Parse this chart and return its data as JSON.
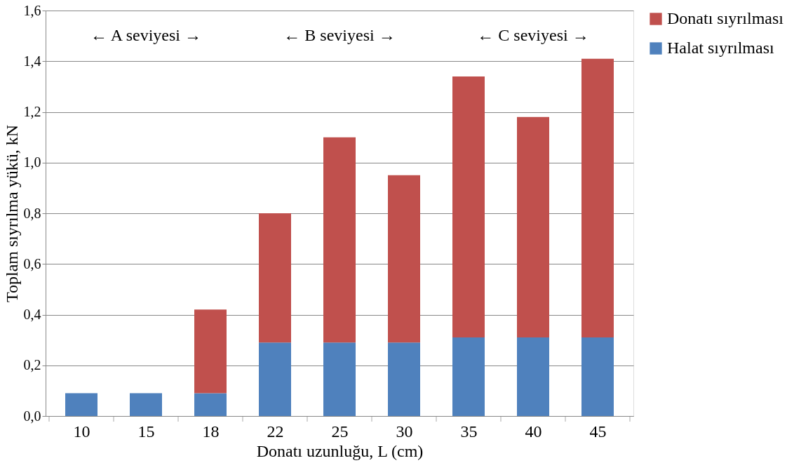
{
  "chart_data": {
    "type": "bar",
    "stacked": true,
    "xlabel": "Donatı uzunluğu, L (cm)",
    "ylabel": "Toplam sıyrılma yükü, kN",
    "categories": [
      "10",
      "15",
      "18",
      "22",
      "25",
      "30",
      "35",
      "40",
      "45"
    ],
    "series": [
      {
        "name": "Halat sıyrılması",
        "color": "#4f81bd",
        "values": [
          0.09,
          0.09,
          0.09,
          0.29,
          0.29,
          0.29,
          0.31,
          0.31,
          0.31
        ]
      },
      {
        "name": "Donatı sıyrılması",
        "color": "#c0504d",
        "values": [
          null,
          null,
          0.33,
          0.51,
          0.81,
          0.66,
          1.03,
          0.87,
          1.1
        ]
      }
    ],
    "ylim": [
      0,
      1.6
    ],
    "yticks": [
      {
        "value": 0,
        "label": "0,0"
      },
      {
        "value": 0.2,
        "label": "0,2"
      },
      {
        "value": 0.4,
        "label": "0,4"
      },
      {
        "value": 0.6,
        "label": "0,6"
      },
      {
        "value": 0.8,
        "label": "0,8"
      },
      {
        "value": 1.0,
        "label": "1,0"
      },
      {
        "value": 1.2,
        "label": "1,2"
      },
      {
        "value": 1.4,
        "label": "1,4"
      },
      {
        "value": 1.6,
        "label": "1,6"
      }
    ],
    "grid": "y",
    "legend": "right",
    "annotations": [
      "← A seviyesi →",
      "← B seviyesi →",
      "← C seviyesi →"
    ]
  }
}
